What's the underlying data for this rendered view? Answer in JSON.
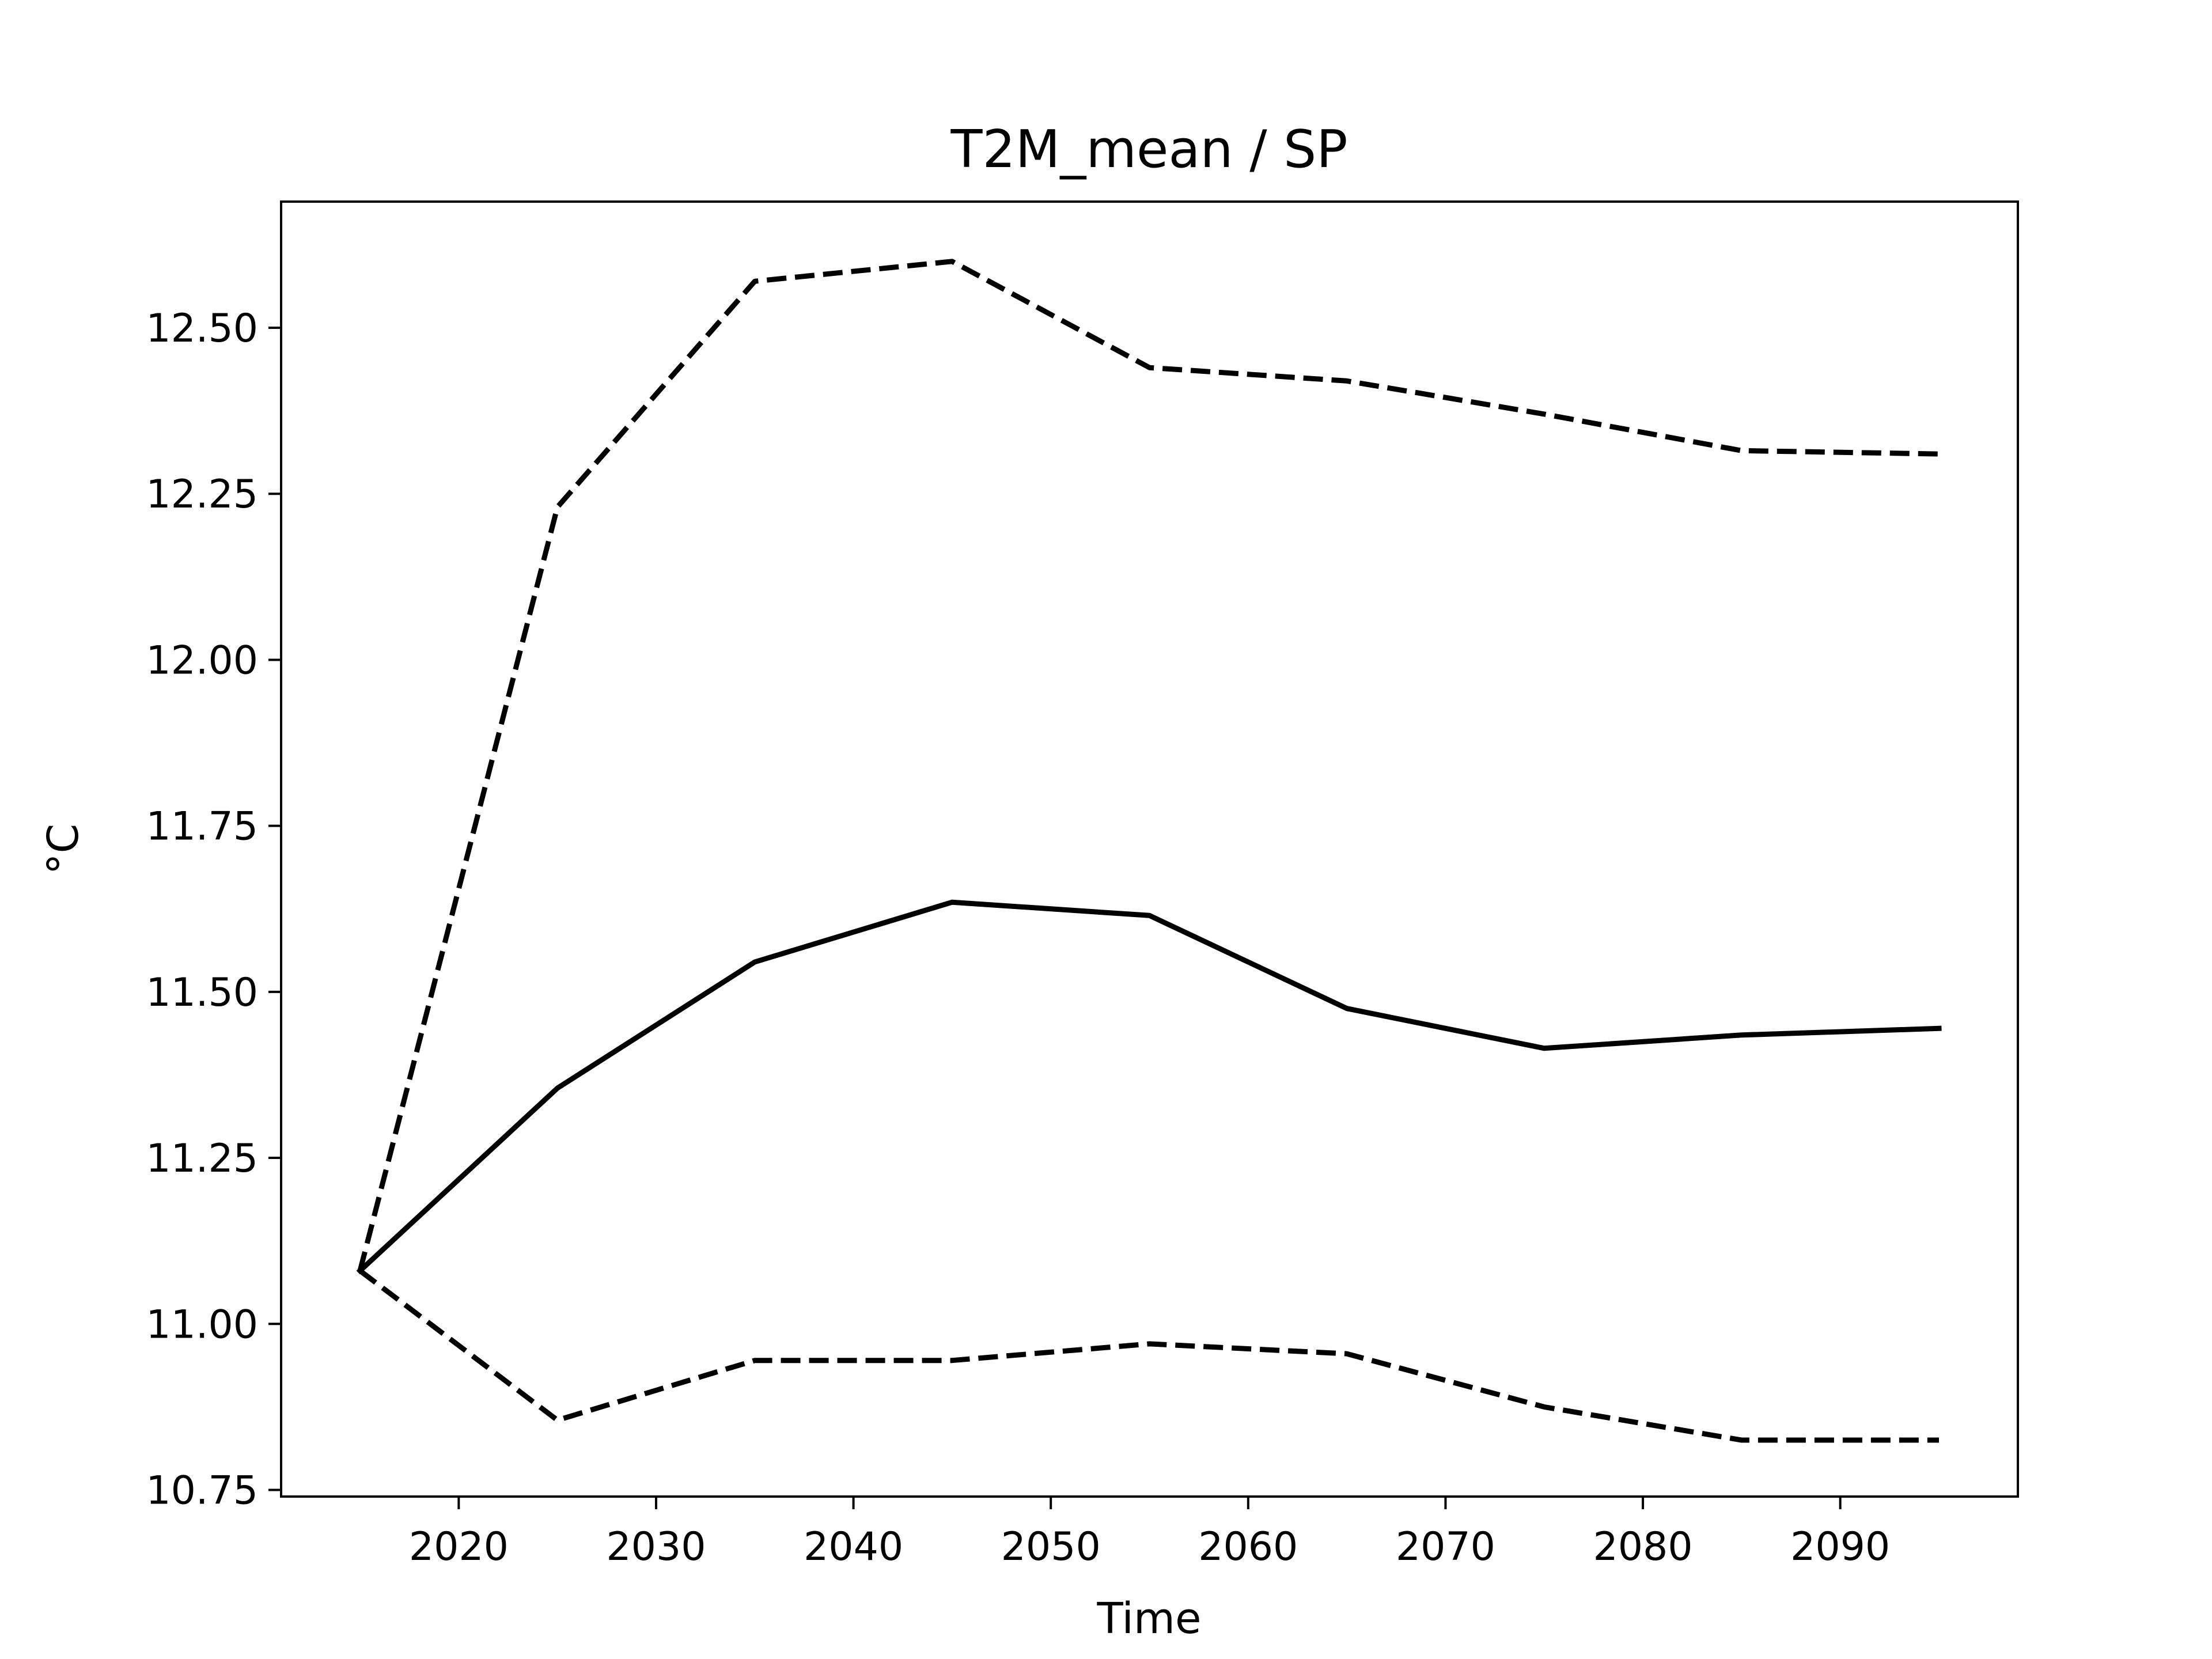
{
  "chart_data": {
    "type": "line",
    "title": "T2M_mean / SP",
    "xlabel": "Time",
    "ylabel": "°C",
    "xlim": [
      2011,
      2099
    ],
    "ylim": [
      10.74,
      12.69
    ],
    "xticks": [
      2020,
      2030,
      2040,
      2050,
      2060,
      2070,
      2080,
      2090
    ],
    "yticks": [
      10.75,
      11.0,
      11.25,
      11.5,
      11.75,
      12.0,
      12.25,
      12.5
    ],
    "grid": false,
    "legend": "none",
    "x": [
      2015,
      2025,
      2035,
      2045,
      2055,
      2065,
      2075,
      2085,
      2095
    ],
    "series": [
      {
        "style": "dashed",
        "color": "#000000",
        "values": [
          11.08,
          12.23,
          12.57,
          12.6,
          12.44,
          12.42,
          12.37,
          12.315,
          12.31
        ]
      },
      {
        "style": "solid",
        "color": "#000000",
        "values": [
          11.08,
          11.355,
          11.545,
          11.635,
          11.615,
          11.475,
          11.415,
          11.435,
          11.445
        ]
      },
      {
        "style": "dashed",
        "color": "#000000",
        "values": [
          11.08,
          10.855,
          10.945,
          10.945,
          10.97,
          10.955,
          10.875,
          10.825,
          10.825
        ]
      }
    ]
  }
}
